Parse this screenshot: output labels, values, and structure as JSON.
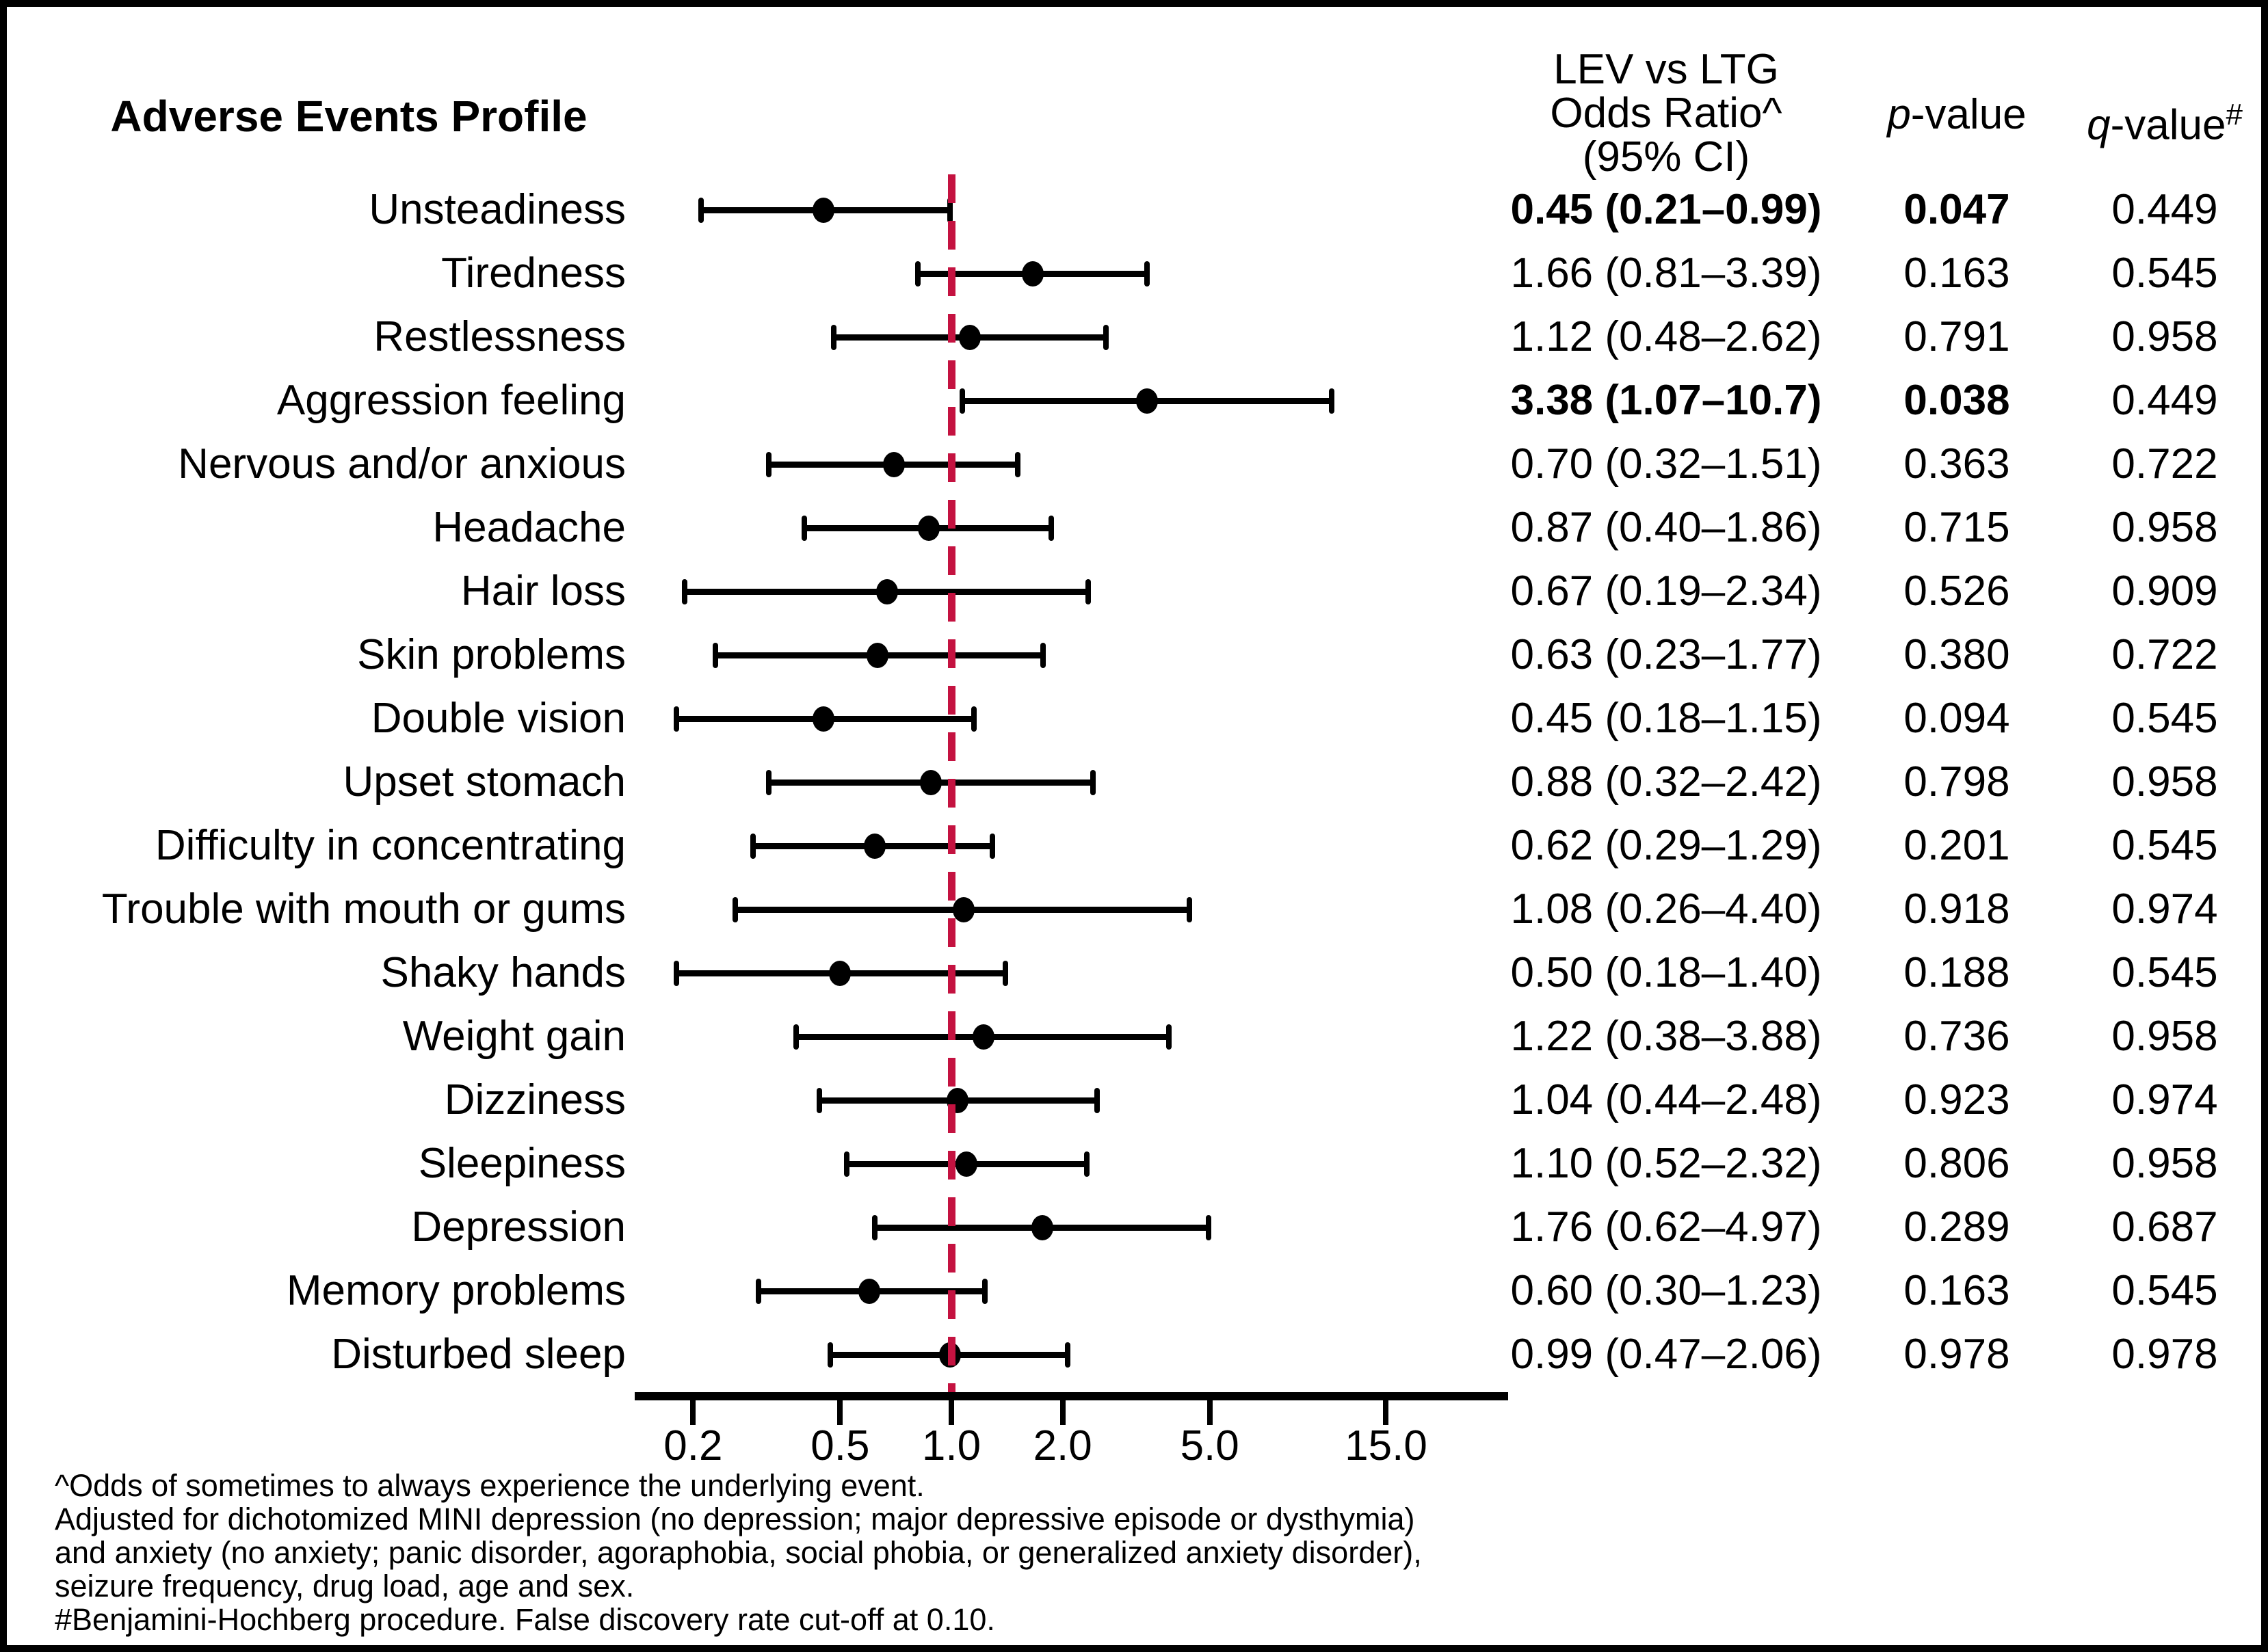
{
  "title": "Adverse Events Profile",
  "header": {
    "or_line1": "LEV vs LTG",
    "or_line2": "Odds Ratio^",
    "or_line3": "(95% CI)",
    "p_letter": "p",
    "p_suffix": "-value",
    "q_letter": "q",
    "q_suffix": "-value",
    "q_superscript": "#"
  },
  "footnotes": [
    "^Odds of sometimes to always experience the underlying event.",
    "Adjusted for dichotomized MINI depression (no depression; major depressive episode or dysthymia)",
    "and anxiety (no anxiety; panic disorder, agoraphobia, social phobia, or generalized anxiety disorder),",
    "seizure frequency, drug load, age and sex.",
    "#Benjamini-Hochberg procedure. False discovery rate cut-off at 0.10."
  ],
  "colors": {
    "reference_line": "#c41240",
    "marker": "#000000",
    "text": "#000000",
    "background": "#ffffff",
    "frame_border": "#000000"
  },
  "chart_data": {
    "type": "scatter",
    "subtype": "forest-plot",
    "title": "Adverse Events Profile",
    "x_scale": "log",
    "xlim": [
      0.139,
      32.1
    ],
    "reference_line_x": 1.0,
    "grid": false,
    "x_ticks": {
      "values": [
        0.2,
        0.5,
        1.0,
        2.0,
        5.0,
        15.0
      ],
      "labels": [
        "0.2",
        "0.5",
        "1.0",
        "2.0",
        "5.0",
        "15.0"
      ]
    },
    "columns": [
      "Adverse event",
      "LEV vs LTG Odds Ratio^ (95% CI)",
      "p-value",
      "q-value#"
    ],
    "rows": [
      {
        "label": "Unsteadiness",
        "or": 0.45,
        "lo": 0.21,
        "hi": 0.99,
        "or_text": "0.45 (0.21–0.99)",
        "p": "0.047",
        "q": "0.449",
        "significant": true
      },
      {
        "label": "Tiredness",
        "or": 1.66,
        "lo": 0.81,
        "hi": 3.39,
        "or_text": "1.66 (0.81–3.39)",
        "p": "0.163",
        "q": "0.545",
        "significant": false
      },
      {
        "label": "Restlessness",
        "or": 1.12,
        "lo": 0.48,
        "hi": 2.62,
        "or_text": "1.12 (0.48–2.62)",
        "p": "0.791",
        "q": "0.958",
        "significant": false
      },
      {
        "label": "Aggression feeling",
        "or": 3.38,
        "lo": 1.07,
        "hi": 10.7,
        "or_text": "3.38 (1.07–10.7)",
        "p": "0.038",
        "q": "0.449",
        "significant": true
      },
      {
        "label": "Nervous and/or anxious",
        "or": 0.7,
        "lo": 0.32,
        "hi": 1.51,
        "or_text": "0.70 (0.32–1.51)",
        "p": "0.363",
        "q": "0.722",
        "significant": false
      },
      {
        "label": "Headache",
        "or": 0.87,
        "lo": 0.4,
        "hi": 1.86,
        "or_text": "0.87 (0.40–1.86)",
        "p": "0.715",
        "q": "0.958",
        "significant": false
      },
      {
        "label": "Hair loss",
        "or": 0.67,
        "lo": 0.19,
        "hi": 2.34,
        "or_text": "0.67 (0.19–2.34)",
        "p": "0.526",
        "q": "0.909",
        "significant": false
      },
      {
        "label": "Skin problems",
        "or": 0.63,
        "lo": 0.23,
        "hi": 1.77,
        "or_text": "0.63 (0.23–1.77)",
        "p": "0.380",
        "q": "0.722",
        "significant": false
      },
      {
        "label": "Double vision",
        "or": 0.45,
        "lo": 0.18,
        "hi": 1.15,
        "or_text": "0.45 (0.18–1.15)",
        "p": "0.094",
        "q": "0.545",
        "significant": false
      },
      {
        "label": "Upset stomach",
        "or": 0.88,
        "lo": 0.32,
        "hi": 2.42,
        "or_text": "0.88 (0.32–2.42)",
        "p": "0.798",
        "q": "0.958",
        "significant": false
      },
      {
        "label": "Difficulty in concentrating",
        "or": 0.62,
        "lo": 0.29,
        "hi": 1.29,
        "or_text": "0.62 (0.29–1.29)",
        "p": "0.201",
        "q": "0.545",
        "significant": false
      },
      {
        "label": "Trouble with mouth or gums",
        "or": 1.08,
        "lo": 0.26,
        "hi": 4.4,
        "or_text": "1.08 (0.26–4.40)",
        "p": "0.918",
        "q": "0.974",
        "significant": false
      },
      {
        "label": "Shaky hands",
        "or": 0.5,
        "lo": 0.18,
        "hi": 1.4,
        "or_text": "0.50 (0.18–1.40)",
        "p": "0.188",
        "q": "0.545",
        "significant": false
      },
      {
        "label": "Weight gain",
        "or": 1.22,
        "lo": 0.38,
        "hi": 3.88,
        "or_text": "1.22 (0.38–3.88)",
        "p": "0.736",
        "q": "0.958",
        "significant": false
      },
      {
        "label": "Dizziness",
        "or": 1.04,
        "lo": 0.44,
        "hi": 2.48,
        "or_text": "1.04 (0.44–2.48)",
        "p": "0.923",
        "q": "0.974",
        "significant": false
      },
      {
        "label": "Sleepiness",
        "or": 1.1,
        "lo": 0.52,
        "hi": 2.32,
        "or_text": "1.10 (0.52–2.32)",
        "p": "0.806",
        "q": "0.958",
        "significant": false
      },
      {
        "label": "Depression",
        "or": 1.76,
        "lo": 0.62,
        "hi": 4.97,
        "or_text": "1.76 (0.62–4.97)",
        "p": "0.289",
        "q": "0.687",
        "significant": false
      },
      {
        "label": "Memory problems",
        "or": 0.6,
        "lo": 0.3,
        "hi": 1.23,
        "or_text": "0.60 (0.30–1.23)",
        "p": "0.163",
        "q": "0.545",
        "significant": false
      },
      {
        "label": "Disturbed sleep",
        "or": 0.99,
        "lo": 0.47,
        "hi": 2.06,
        "or_text": "0.99 (0.47–2.06)",
        "p": "0.978",
        "q": "0.978",
        "significant": false
      }
    ]
  }
}
